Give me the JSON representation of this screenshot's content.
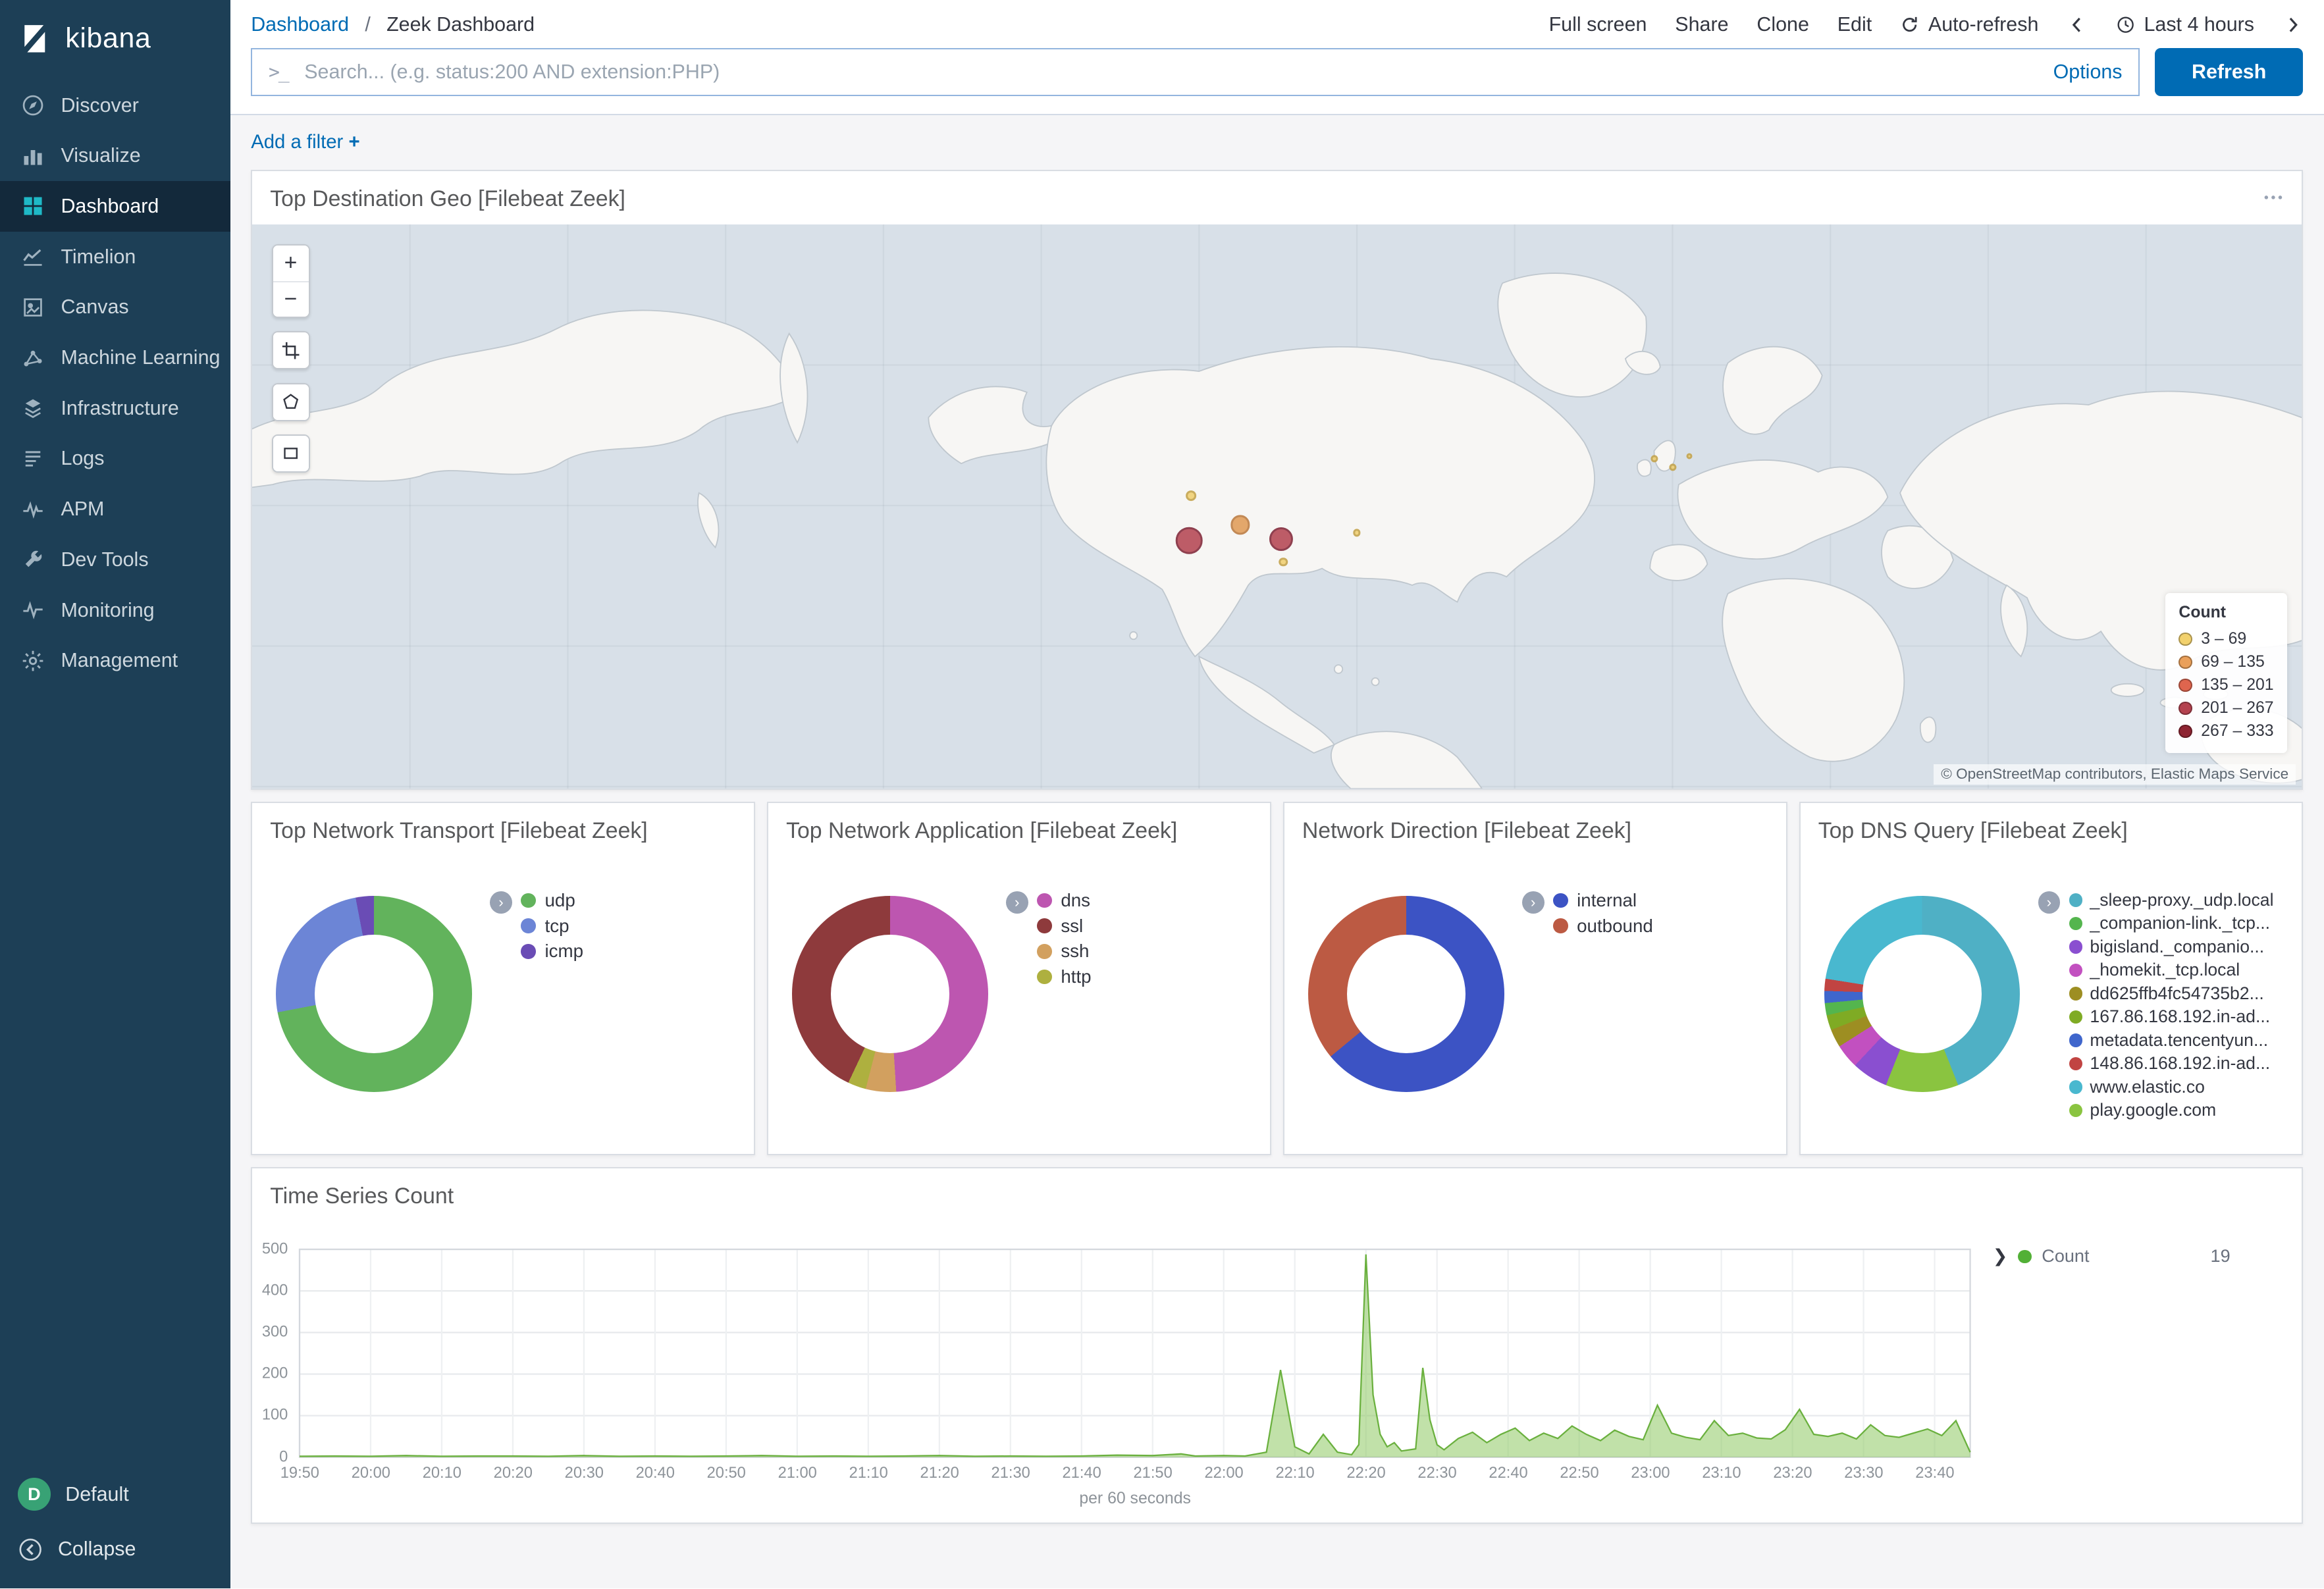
{
  "app": {
    "logo_text": "kibana"
  },
  "sidebar": {
    "items": [
      {
        "label": "Discover",
        "icon": "discover-icon"
      },
      {
        "label": "Visualize",
        "icon": "visualize-icon"
      },
      {
        "label": "Dashboard",
        "icon": "dashboard-icon",
        "active": true
      },
      {
        "label": "Timelion",
        "icon": "timelion-icon"
      },
      {
        "label": "Canvas",
        "icon": "canvas-icon"
      },
      {
        "label": "Machine Learning",
        "icon": "ml-icon"
      },
      {
        "label": "Infrastructure",
        "icon": "infrastructure-icon"
      },
      {
        "label": "Logs",
        "icon": "logs-icon"
      },
      {
        "label": "APM",
        "icon": "apm-icon"
      },
      {
        "label": "Dev Tools",
        "icon": "devtools-icon"
      },
      {
        "label": "Monitoring",
        "icon": "monitoring-icon"
      },
      {
        "label": "Management",
        "icon": "management-icon"
      }
    ],
    "footer": [
      {
        "label": "Default",
        "avatar_letter": "D",
        "avatar_color": "#38a275"
      },
      {
        "label": "Collapse",
        "icon": "collapse-icon"
      }
    ]
  },
  "topnav": {
    "breadcrumb_parent": "Dashboard",
    "breadcrumb_separator": "/",
    "breadcrumb_current": "Zeek Dashboard",
    "actions": [
      "Full screen",
      "Share",
      "Clone",
      "Edit"
    ],
    "auto_refresh": "Auto-refresh",
    "time_range": "Last 4 hours"
  },
  "search": {
    "prompt": ">_",
    "placeholder": "Search... (e.g. status:200 AND extension:PHP)",
    "options_label": "Options",
    "refresh_label": "Refresh"
  },
  "filters": {
    "add_filter": "Add a filter",
    "plus": "+"
  },
  "map_panel": {
    "title": "Top Destination Geo [Filebeat Zeek]",
    "attribution": "© OpenStreetMap contributors, Elastic Maps Service",
    "legend_title": "Count",
    "legend_items": [
      {
        "range": "3 – 69",
        "color": "#f2d16d"
      },
      {
        "range": "69 – 135",
        "color": "#eaa05a"
      },
      {
        "range": "135 – 201",
        "color": "#df654e"
      },
      {
        "range": "201 – 267",
        "color": "#b4424f"
      },
      {
        "range": "267 – 333",
        "color": "#8e2432"
      }
    ],
    "points": [
      {
        "x": 45.7,
        "y": 56.0,
        "r": 9,
        "color": "#b4424f",
        "stroke": "#7d2133"
      },
      {
        "x": 50.2,
        "y": 55.7,
        "r": 8,
        "color": "#b4424f",
        "stroke": "#7d2133"
      },
      {
        "x": 48.2,
        "y": 53.2,
        "r": 6.5,
        "color": "#e09a54",
        "stroke": "#b9763a"
      },
      {
        "x": 45.8,
        "y": 48.0,
        "r": 3.5,
        "color": "#f0cf6e",
        "stroke": "#c2a044"
      },
      {
        "x": 50.3,
        "y": 59.8,
        "r": 3,
        "color": "#f0cf6e",
        "stroke": "#c2a044"
      },
      {
        "x": 53.9,
        "y": 54.6,
        "r": 2.5,
        "color": "#f0cf6e",
        "stroke": "#c2a044"
      },
      {
        "x": 68.4,
        "y": 41.5,
        "r": 2.5,
        "color": "#f0cf6e",
        "stroke": "#c2a044"
      },
      {
        "x": 69.3,
        "y": 43.0,
        "r": 2.5,
        "color": "#f0cf6e",
        "stroke": "#c2a044"
      },
      {
        "x": 70.1,
        "y": 41.0,
        "r": 2,
        "color": "#f0cf6e",
        "stroke": "#c2a044"
      }
    ],
    "controls": [
      "zoom-in",
      "zoom-out",
      "fit-data",
      "draw-polygon",
      "draw-rectangle"
    ]
  },
  "chart_data": [
    {
      "type": "pie",
      "title": "Top Network Transport [Filebeat Zeek]",
      "series": [
        {
          "label": "udp",
          "color": "#62b35c",
          "value": 72
        },
        {
          "label": "tcp",
          "color": "#6c85d6",
          "value": 25
        },
        {
          "label": "icmp",
          "color": "#6a4cb5",
          "value": 3
        }
      ]
    },
    {
      "type": "pie",
      "title": "Top Network Application [Filebeat Zeek]",
      "series": [
        {
          "label": "dns",
          "color": "#bd56b0",
          "value": 49
        },
        {
          "label": "ssl",
          "color": "#8e3a3c",
          "value": 43
        },
        {
          "label": "ssh",
          "color": "#d2a05f",
          "value": 5
        },
        {
          "label": "http",
          "color": "#aeb03f",
          "value": 3
        }
      ],
      "draw_sequence": [
        0,
        2,
        3,
        1
      ]
    },
    {
      "type": "pie",
      "title": "Network Direction [Filebeat Zeek]",
      "series": [
        {
          "label": "internal",
          "color": "#3c53c4",
          "value": 64
        },
        {
          "label": "outbound",
          "color": "#bc5a43",
          "value": 36
        }
      ]
    },
    {
      "type": "pie",
      "title": "Top DNS Query [Filebeat Zeek]",
      "series": [
        {
          "label": "_sleep-proxy._udp.local",
          "color": "#4fb0c5",
          "value": 44
        },
        {
          "label": "_companion-link._tcp...",
          "color": "#54b54e",
          "value": 2
        },
        {
          "label": "bigisland._companio...",
          "color": "#8a4fd0",
          "value": 6
        },
        {
          "label": "_homekit._tcp.local",
          "color": "#c250c0",
          "value": 4
        },
        {
          "label": "dd625ffb4fc54735b2...",
          "color": "#9d8e22",
          "value": 3
        },
        {
          "label": "167.86.168.192.in-ad...",
          "color": "#7fab24",
          "value": 2.5
        },
        {
          "label": "metadata.tencentyun...",
          "color": "#3f66cc",
          "value": 2
        },
        {
          "label": "148.86.168.192.in-ad...",
          "color": "#c14442",
          "value": 2
        },
        {
          "label": "www.elastic.co",
          "color": "#49b8cf",
          "value": 22.5
        },
        {
          "label": "play.google.com",
          "color": "#8ac440",
          "value": 12
        }
      ],
      "draw_sequence": [
        0,
        9,
        2,
        3,
        4,
        5,
        1,
        6,
        7,
        8
      ]
    },
    {
      "type": "area",
      "title": "Time Series Count",
      "x_label": "per 60 seconds",
      "ylim": [
        0,
        500
      ],
      "y_ticks": [
        0,
        100,
        200,
        300,
        400,
        500
      ],
      "x_ticks": [
        "19:50",
        "20:00",
        "20:10",
        "20:20",
        "20:30",
        "20:40",
        "20:50",
        "21:00",
        "21:10",
        "21:20",
        "21:30",
        "21:40",
        "21:50",
        "22:00",
        "22:10",
        "22:20",
        "22:30",
        "22:40",
        "22:50",
        "23:00",
        "23:10",
        "23:20",
        "23:30",
        "23:40"
      ],
      "t_max": 235,
      "line_color": "#6ab03e",
      "fill_color": "rgba(132,196,84,0.5)",
      "legend": {
        "name": "Count",
        "value": 19,
        "color": "#52b036"
      },
      "points": [
        [
          0,
          2
        ],
        [
          5,
          3
        ],
        [
          10,
          2
        ],
        [
          15,
          4
        ],
        [
          20,
          2
        ],
        [
          25,
          3
        ],
        [
          30,
          3
        ],
        [
          35,
          2
        ],
        [
          40,
          4
        ],
        [
          45,
          2
        ],
        [
          50,
          3
        ],
        [
          55,
          2
        ],
        [
          60,
          3
        ],
        [
          65,
          4
        ],
        [
          70,
          2
        ],
        [
          75,
          3
        ],
        [
          80,
          2
        ],
        [
          85,
          3
        ],
        [
          90,
          4
        ],
        [
          95,
          2
        ],
        [
          100,
          3
        ],
        [
          105,
          2
        ],
        [
          110,
          3
        ],
        [
          115,
          5
        ],
        [
          120,
          4
        ],
        [
          124,
          8
        ],
        [
          126,
          3
        ],
        [
          130,
          4
        ],
        [
          133,
          3
        ],
        [
          136,
          12
        ],
        [
          138,
          210
        ],
        [
          140,
          25
        ],
        [
          142,
          8
        ],
        [
          144,
          55
        ],
        [
          146,
          12
        ],
        [
          148,
          6
        ],
        [
          149,
          30
        ],
        [
          150,
          488
        ],
        [
          151,
          150
        ],
        [
          152,
          55
        ],
        [
          153,
          25
        ],
        [
          154,
          35
        ],
        [
          155,
          15
        ],
        [
          157,
          20
        ],
        [
          158,
          215
        ],
        [
          159,
          90
        ],
        [
          160,
          30
        ],
        [
          161,
          18
        ],
        [
          163,
          45
        ],
        [
          165,
          60
        ],
        [
          167,
          35
        ],
        [
          169,
          55
        ],
        [
          171,
          70
        ],
        [
          173,
          40
        ],
        [
          175,
          58
        ],
        [
          177,
          45
        ],
        [
          179,
          75
        ],
        [
          181,
          55
        ],
        [
          183,
          40
        ],
        [
          185,
          65
        ],
        [
          187,
          50
        ],
        [
          189,
          42
        ],
        [
          191,
          125
        ],
        [
          193,
          58
        ],
        [
          195,
          48
        ],
        [
          197,
          42
        ],
        [
          199,
          88
        ],
        [
          201,
          52
        ],
        [
          203,
          58
        ],
        [
          205,
          46
        ],
        [
          207,
          44
        ],
        [
          209,
          66
        ],
        [
          211,
          115
        ],
        [
          213,
          55
        ],
        [
          215,
          50
        ],
        [
          217,
          58
        ],
        [
          219,
          44
        ],
        [
          221,
          78
        ],
        [
          223,
          52
        ],
        [
          225,
          48
        ],
        [
          227,
          58
        ],
        [
          229,
          68
        ],
        [
          231,
          52
        ],
        [
          233,
          88
        ],
        [
          235,
          12
        ]
      ]
    }
  ]
}
